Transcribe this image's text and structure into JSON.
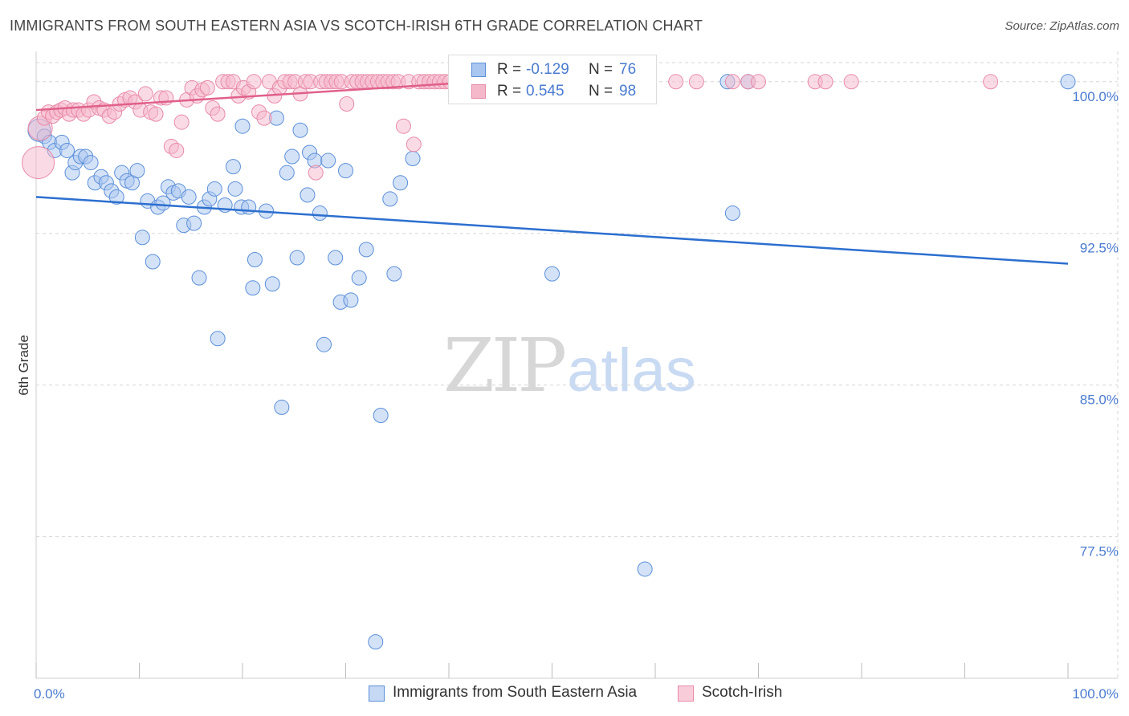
{
  "header": {
    "title": "IMMIGRANTS FROM SOUTH EASTERN ASIA VS SCOTCH-IRISH 6TH GRADE CORRELATION CHART",
    "source": "Source: ZipAtlas.com"
  },
  "watermark": {
    "zip": "ZIP",
    "atlas": "atlas"
  },
  "colors": {
    "blue_fill": "#a9c6f0",
    "blue_stroke": "#5b8fd9",
    "blue_line": "#2c6fcf",
    "pink_fill": "#f5b8cb",
    "pink_stroke": "#e88aa8",
    "pink_line": "#e0608a",
    "accent_text": "#4a7bd0",
    "grid": "#d6d6d6"
  },
  "legend": {
    "rows": [
      {
        "r_label": "R =",
        "r_value": "-0.129",
        "n_label": "N =",
        "n_value": "76"
      },
      {
        "r_label": "R =",
        "r_value": "0.545",
        "n_label": "N =",
        "n_value": "98"
      }
    ]
  },
  "chart_data": {
    "type": "scatter",
    "title": "IMMIGRANTS FROM SOUTH EASTERN ASIA VS SCOTCH-IRISH 6TH GRADE CORRELATION CHART",
    "xlabel": "",
    "ylabel": "6th Grade",
    "xlim": [
      0,
      100
    ],
    "ylim": [
      70.5,
      101.5
    ],
    "x_tick_labels": [
      "0.0%",
      "100.0%"
    ],
    "y_ticks": [
      {
        "value": 100.0,
        "label": "100.0%"
      },
      {
        "value": 92.5,
        "label": "92.5%"
      },
      {
        "value": 85.0,
        "label": "85.0%"
      },
      {
        "value": 77.5,
        "label": "77.5%"
      }
    ],
    "grid": true,
    "legend_position": "top-center",
    "series": [
      {
        "name": "Immigrants from South Eastern Asia",
        "color": "blue",
        "trend": {
          "r": -0.129,
          "n": 76,
          "x0": 0,
          "y0": 94.3,
          "x1": 100,
          "y1": 91.0
        },
        "points": [
          [
            0.3,
            97.6
          ],
          [
            0.8,
            97.3
          ],
          [
            1.3,
            97.0
          ],
          [
            1.8,
            96.6
          ],
          [
            2.5,
            97.0
          ],
          [
            3.0,
            96.6
          ],
          [
            3.5,
            95.5
          ],
          [
            3.8,
            96.0
          ],
          [
            4.3,
            96.3
          ],
          [
            4.8,
            96.3
          ],
          [
            5.3,
            96.0
          ],
          [
            5.7,
            95.0
          ],
          [
            6.3,
            95.3
          ],
          [
            6.8,
            95.0
          ],
          [
            7.3,
            94.6
          ],
          [
            7.8,
            94.3
          ],
          [
            8.3,
            95.5
          ],
          [
            8.8,
            95.1
          ],
          [
            9.3,
            95.0
          ],
          [
            9.8,
            95.6
          ],
          [
            10.3,
            92.3
          ],
          [
            10.8,
            94.1
          ],
          [
            11.3,
            91.1
          ],
          [
            11.8,
            93.8
          ],
          [
            12.3,
            94.0
          ],
          [
            12.8,
            94.8
          ],
          [
            13.3,
            94.5
          ],
          [
            13.8,
            94.6
          ],
          [
            14.3,
            92.9
          ],
          [
            14.8,
            94.3
          ],
          [
            15.3,
            93.0
          ],
          [
            15.8,
            90.3
          ],
          [
            16.3,
            93.8
          ],
          [
            16.8,
            94.2
          ],
          [
            17.3,
            94.7
          ],
          [
            17.6,
            87.3
          ],
          [
            18.3,
            93.9
          ],
          [
            19.3,
            94.7
          ],
          [
            19.1,
            95.8
          ],
          [
            19.9,
            93.8
          ],
          [
            20.0,
            97.8
          ],
          [
            20.6,
            93.8
          ],
          [
            21.0,
            89.8
          ],
          [
            21.2,
            91.2
          ],
          [
            22.3,
            93.6
          ],
          [
            22.9,
            90.0
          ],
          [
            23.3,
            98.2
          ],
          [
            23.8,
            83.9
          ],
          [
            24.3,
            95.5
          ],
          [
            24.8,
            96.3
          ],
          [
            25.3,
            91.3
          ],
          [
            25.6,
            97.6
          ],
          [
            26.3,
            94.4
          ],
          [
            26.5,
            96.5
          ],
          [
            27.0,
            96.1
          ],
          [
            27.5,
            93.5
          ],
          [
            27.9,
            87.0
          ],
          [
            28.3,
            96.1
          ],
          [
            29.0,
            91.3
          ],
          [
            29.5,
            89.1
          ],
          [
            30.0,
            95.6
          ],
          [
            30.5,
            89.2
          ],
          [
            31.3,
            90.3
          ],
          [
            32.0,
            91.7
          ],
          [
            32.9,
            72.3
          ],
          [
            33.4,
            83.5
          ],
          [
            34.3,
            94.2
          ],
          [
            34.7,
            90.5
          ],
          [
            35.3,
            95.0
          ],
          [
            36.5,
            96.2
          ],
          [
            50.0,
            90.5
          ],
          [
            59.0,
            75.9
          ],
          [
            67.0,
            100.0
          ],
          [
            67.5,
            93.5
          ],
          [
            69.0,
            100.0
          ],
          [
            100.0,
            100.0
          ]
        ]
      },
      {
        "name": "Scotch-Irish",
        "color": "pink",
        "trend": {
          "r": 0.545,
          "n": 98,
          "x0": 0,
          "y0": 98.6,
          "x1": 40,
          "y1": 99.9
        },
        "points": [
          [
            0.2,
            96.0
          ],
          [
            0.4,
            97.7
          ],
          [
            0.8,
            98.2
          ],
          [
            1.2,
            98.5
          ],
          [
            1.6,
            98.3
          ],
          [
            2.0,
            98.5
          ],
          [
            2.4,
            98.6
          ],
          [
            2.8,
            98.7
          ],
          [
            3.2,
            98.4
          ],
          [
            3.6,
            98.6
          ],
          [
            4.1,
            98.6
          ],
          [
            4.6,
            98.4
          ],
          [
            5.1,
            98.6
          ],
          [
            5.6,
            99.0
          ],
          [
            6.1,
            98.7
          ],
          [
            6.6,
            98.6
          ],
          [
            7.1,
            98.3
          ],
          [
            7.6,
            98.5
          ],
          [
            8.1,
            98.9
          ],
          [
            8.6,
            99.1
          ],
          [
            9.1,
            99.2
          ],
          [
            9.6,
            99.0
          ],
          [
            10.1,
            98.6
          ],
          [
            10.6,
            99.4
          ],
          [
            11.1,
            98.5
          ],
          [
            11.6,
            98.4
          ],
          [
            12.1,
            99.2
          ],
          [
            12.6,
            99.2
          ],
          [
            13.1,
            96.8
          ],
          [
            13.6,
            96.6
          ],
          [
            14.1,
            98.0
          ],
          [
            14.6,
            99.1
          ],
          [
            15.1,
            99.7
          ],
          [
            15.6,
            99.3
          ],
          [
            16.1,
            99.6
          ],
          [
            16.6,
            99.7
          ],
          [
            17.1,
            98.7
          ],
          [
            17.6,
            98.4
          ],
          [
            18.1,
            100.0
          ],
          [
            18.6,
            100.0
          ],
          [
            19.1,
            100.0
          ],
          [
            19.6,
            99.3
          ],
          [
            20.1,
            99.7
          ],
          [
            20.6,
            99.5
          ],
          [
            21.1,
            100.0
          ],
          [
            21.6,
            98.5
          ],
          [
            22.1,
            98.2
          ],
          [
            22.6,
            100.0
          ],
          [
            23.1,
            99.3
          ],
          [
            23.6,
            99.7
          ],
          [
            24.1,
            100.0
          ],
          [
            24.6,
            100.0
          ],
          [
            25.1,
            100.0
          ],
          [
            25.6,
            99.4
          ],
          [
            26.1,
            100.0
          ],
          [
            26.6,
            100.0
          ],
          [
            27.1,
            95.5
          ],
          [
            27.6,
            100.0
          ],
          [
            28.1,
            100.0
          ],
          [
            28.6,
            100.0
          ],
          [
            29.1,
            100.0
          ],
          [
            29.6,
            100.0
          ],
          [
            30.1,
            98.9
          ],
          [
            30.6,
            100.0
          ],
          [
            31.1,
            100.0
          ],
          [
            31.6,
            100.0
          ],
          [
            32.1,
            100.0
          ],
          [
            32.6,
            100.0
          ],
          [
            33.1,
            100.0
          ],
          [
            33.6,
            100.0
          ],
          [
            34.1,
            100.0
          ],
          [
            34.6,
            100.0
          ],
          [
            35.1,
            100.0
          ],
          [
            35.6,
            97.8
          ],
          [
            36.1,
            100.0
          ],
          [
            36.6,
            96.9
          ],
          [
            37.1,
            100.0
          ],
          [
            37.6,
            100.0
          ],
          [
            38.1,
            100.0
          ],
          [
            38.6,
            100.0
          ],
          [
            39.1,
            100.0
          ],
          [
            39.6,
            100.0
          ],
          [
            40.1,
            100.0
          ],
          [
            41.0,
            100.0
          ],
          [
            42.0,
            100.0
          ],
          [
            44.0,
            100.0
          ],
          [
            47.0,
            100.0
          ],
          [
            52.0,
            100.0
          ],
          [
            55.0,
            100.0
          ],
          [
            62.0,
            100.0
          ],
          [
            64.0,
            100.0
          ],
          [
            67.5,
            100.0
          ],
          [
            69.0,
            100.0
          ],
          [
            70.0,
            100.0
          ],
          [
            75.5,
            100.0
          ],
          [
            76.5,
            100.0
          ],
          [
            79.0,
            100.0
          ],
          [
            92.5,
            100.0
          ]
        ]
      }
    ]
  },
  "bottom_legend": {
    "items": [
      {
        "label": "Immigrants from South Eastern Asia"
      },
      {
        "label": "Scotch-Irish"
      }
    ]
  }
}
